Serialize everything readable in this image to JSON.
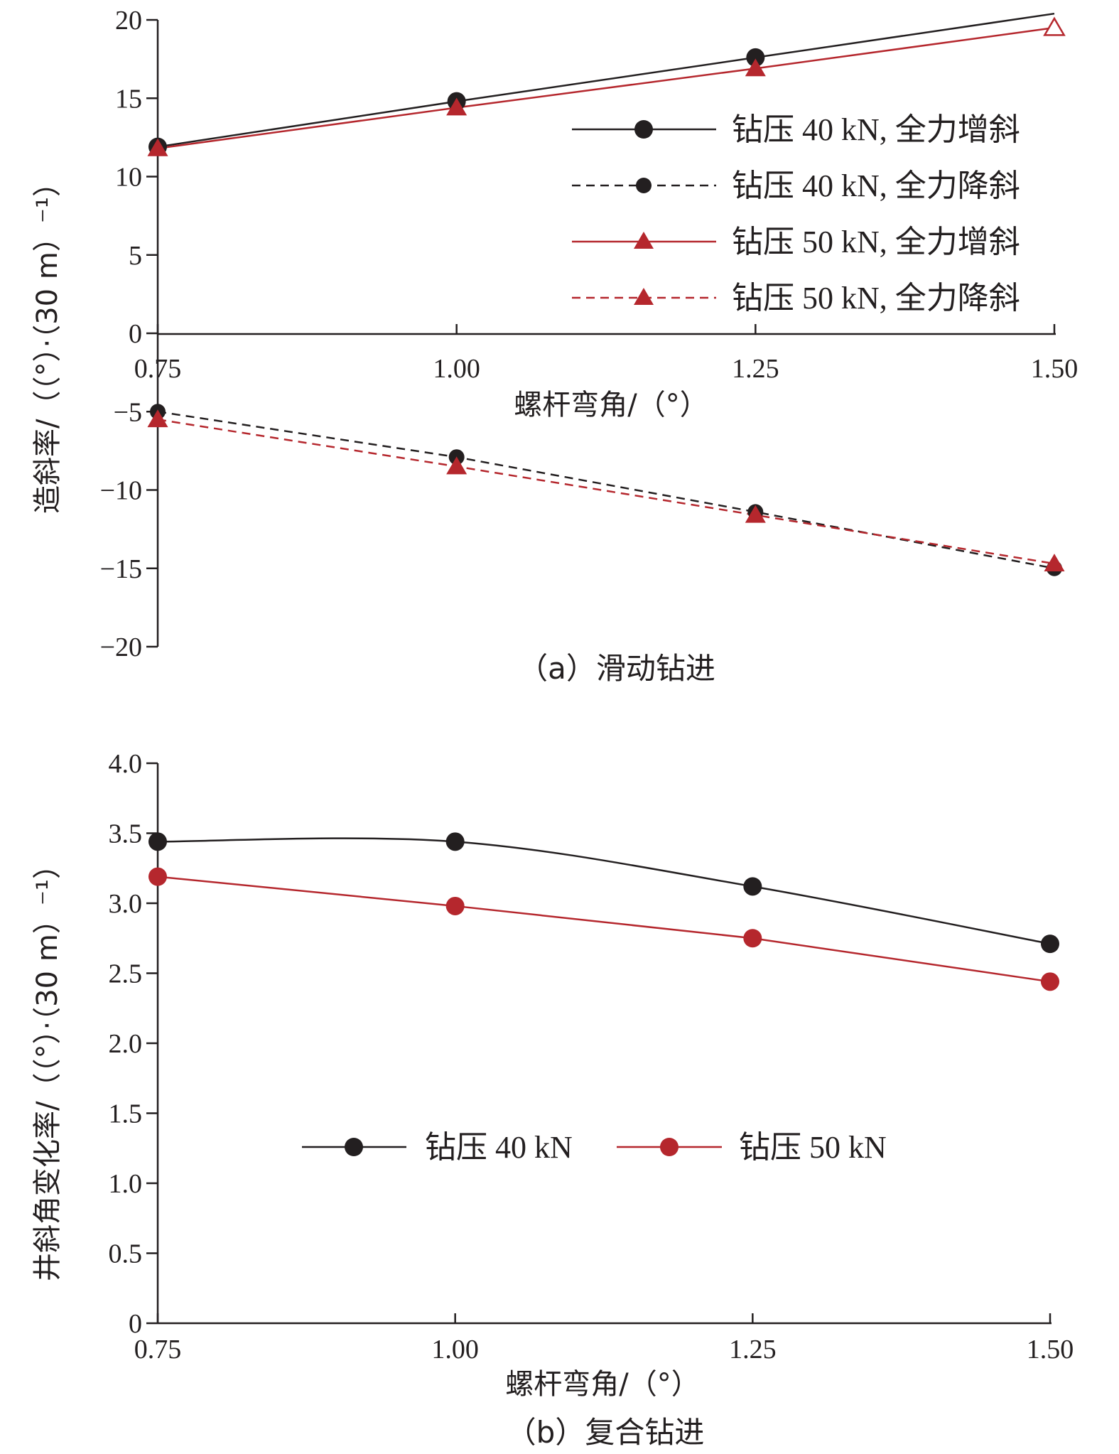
{
  "chart_data": [
    {
      "id": "a",
      "type": "line",
      "caption": "（a）滑动钻进",
      "xlabel": "螺杆弯角/（°）",
      "ylabel": "造斜率/（（°）·（30 m）⁻¹）",
      "x": [
        0.75,
        1.0,
        1.25,
        1.5
      ],
      "x_ticks": [
        "0.75",
        "1.00",
        "1.25",
        "1.50"
      ],
      "ylim": [
        -20,
        20
      ],
      "y_ticks": [
        "−20",
        "−15",
        "−10",
        "−5",
        "0",
        "5",
        "10",
        "15",
        "20"
      ],
      "series": [
        {
          "name": "钻压 40 kN, 全力增斜",
          "values": [
            11.9,
            14.8,
            17.6,
            20.4
          ],
          "color": "#231f20",
          "dash": "solid",
          "marker": "circle",
          "markers": [
            true,
            true,
            true,
            false
          ]
        },
        {
          "name": "钻压 40 kN, 全力降斜",
          "values": [
            -5.0,
            -7.9,
            -11.4,
            -15.0
          ],
          "color": "#231f20",
          "dash": "dashed",
          "marker": "circle",
          "markers": [
            true,
            true,
            true,
            true
          ]
        },
        {
          "name": "钻压 50 kN, 全力增斜",
          "values": [
            11.8,
            14.4,
            16.9,
            19.5
          ],
          "color": "#b5272d",
          "dash": "solid",
          "marker": "triangle",
          "markers": [
            true,
            true,
            true,
            true
          ],
          "last_marker_hollow": true
        },
        {
          "name": "钻压 50 kN, 全力降斜",
          "values": [
            -5.5,
            -8.5,
            -11.6,
            -14.7
          ],
          "color": "#b5272d",
          "dash": "dashed",
          "marker": "triangle",
          "markers": [
            true,
            true,
            true,
            true
          ]
        }
      ]
    },
    {
      "id": "b",
      "type": "line",
      "caption": "（b）复合钻进",
      "xlabel": "螺杆弯角/（°）",
      "ylabel": "井斜角变化率/（（°）·（30 m）⁻¹）",
      "x": [
        0.75,
        1.0,
        1.25,
        1.5
      ],
      "x_ticks": [
        "0.75",
        "1.00",
        "1.25",
        "1.50"
      ],
      "ylim": [
        0,
        4.0
      ],
      "y_ticks": [
        "0",
        "0.5",
        "1.0",
        "1.5",
        "2.0",
        "2.5",
        "3.0",
        "3.5",
        "4.0"
      ],
      "series": [
        {
          "name": "钻压 40 kN",
          "values": [
            3.44,
            3.44,
            3.12,
            2.71
          ],
          "color": "#231f20",
          "dash": "solid",
          "marker": "circle",
          "markers": [
            true,
            true,
            true,
            true
          ]
        },
        {
          "name": "钻压 50 kN",
          "values": [
            3.19,
            2.98,
            2.75,
            2.44
          ],
          "color": "#b5272d",
          "dash": "solid",
          "marker": "circle",
          "markers": [
            true,
            true,
            true,
            true
          ]
        }
      ]
    }
  ]
}
